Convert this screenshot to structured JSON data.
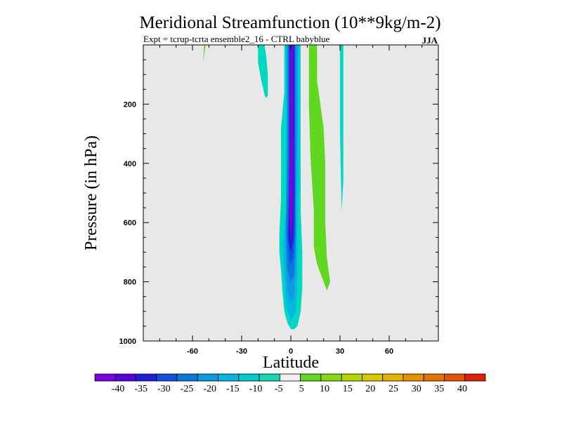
{
  "chart_data": {
    "type": "heatmap",
    "title": "Meridional Streamfunction (10**9kg/m-2)",
    "subtitle": "Expt = tcrup-tcrta  ensemble2_16 - CTRL babyblue",
    "season": "JJA",
    "xlabel": "Latitude",
    "ylabel": "Pressure (in hPa)",
    "xlim": [
      -90,
      90
    ],
    "ylim": [
      1000,
      0
    ],
    "x_ticks": [
      -60,
      -30,
      0,
      30,
      60
    ],
    "x_tick_labels": [
      "-60",
      "-30",
      "0",
      "30",
      "60"
    ],
    "y_ticks": [
      200,
      400,
      600,
      800,
      1000
    ],
    "y_tick_labels": [
      "200",
      "400",
      "600",
      "800",
      "1000"
    ],
    "background_color": "#e8e8e8",
    "colorbar": {
      "labels": [
        "-40",
        "-35",
        "-30",
        "-25",
        "-20",
        "-15",
        "-10",
        "-5",
        "5",
        "10",
        "15",
        "20",
        "25",
        "30",
        "35",
        "40"
      ],
      "colors": [
        "#7b00e0",
        "#5a00d8",
        "#2020d8",
        "#1050e0",
        "#0a78e0",
        "#0a9be0",
        "#00b8e0",
        "#00ccd0",
        "#10d8b0",
        "#f0f0f0",
        "#60d820",
        "#88d810",
        "#b0d800",
        "#d8c800",
        "#e8b000",
        "#e89000",
        "#e87000",
        "#e85000",
        "#e02000"
      ]
    },
    "regions": [
      {
        "name": "negative-cell-outer",
        "value_level": "-10",
        "color": "#00d8c0",
        "points": [
          [
            -4,
            0
          ],
          [
            -4,
            80
          ],
          [
            -4,
            160
          ],
          [
            -6,
            280
          ],
          [
            -6,
            400
          ],
          [
            -6,
            520
          ],
          [
            -7,
            640
          ],
          [
            -7,
            700
          ],
          [
            -6,
            760
          ],
          [
            -5,
            840
          ],
          [
            -4,
            900
          ],
          [
            -2,
            940
          ],
          [
            0,
            960
          ],
          [
            2,
            960
          ],
          [
            4,
            950
          ],
          [
            6,
            900
          ],
          [
            7,
            820
          ],
          [
            7,
            700
          ],
          [
            6,
            560
          ],
          [
            6,
            400
          ],
          [
            6,
            240
          ],
          [
            6,
            80
          ],
          [
            6,
            0
          ]
        ]
      },
      {
        "name": "negative-cell-band1",
        "value_level": "-15",
        "color": "#00b8e0",
        "points": [
          [
            -3,
            0
          ],
          [
            -3,
            300
          ],
          [
            -3,
            560
          ],
          [
            -5,
            680
          ],
          [
            -4,
            800
          ],
          [
            -3,
            880
          ],
          [
            0,
            930
          ],
          [
            3,
            900
          ],
          [
            4,
            800
          ],
          [
            4,
            640
          ],
          [
            5,
            400
          ],
          [
            5,
            120
          ],
          [
            5,
            0
          ]
        ]
      },
      {
        "name": "negative-cell-band2",
        "value_level": "-20",
        "color": "#0a9be0",
        "points": [
          [
            -2,
            0
          ],
          [
            -2,
            300
          ],
          [
            -3,
            620
          ],
          [
            -3,
            760
          ],
          [
            -2,
            830
          ],
          [
            0,
            870
          ],
          [
            2,
            850
          ],
          [
            3,
            740
          ],
          [
            3,
            560
          ],
          [
            4,
            300
          ],
          [
            4,
            0
          ]
        ]
      },
      {
        "name": "negative-cell-band3",
        "value_level": "-25",
        "color": "#0a78e0",
        "points": [
          [
            -2,
            0
          ],
          [
            -2,
            400
          ],
          [
            -3,
            640
          ],
          [
            -2,
            760
          ],
          [
            0,
            800
          ],
          [
            2,
            780
          ],
          [
            3,
            680
          ],
          [
            3,
            400
          ],
          [
            3,
            0
          ]
        ]
      },
      {
        "name": "negative-cell-band4",
        "value_level": "-30",
        "color": "#1050e0",
        "points": [
          [
            -1,
            0
          ],
          [
            -1,
            400
          ],
          [
            -2,
            640
          ],
          [
            -1,
            720
          ],
          [
            0,
            740
          ],
          [
            1.5,
            720
          ],
          [
            2.5,
            620
          ],
          [
            2.5,
            300
          ],
          [
            2.5,
            0
          ]
        ]
      },
      {
        "name": "negative-cell-band5",
        "value_level": "-35",
        "color": "#2020d8",
        "points": [
          [
            -1,
            0
          ],
          [
            -1,
            500
          ],
          [
            -1.5,
            660
          ],
          [
            0,
            700
          ],
          [
            1.5,
            660
          ],
          [
            2,
            500
          ],
          [
            2,
            0
          ]
        ]
      },
      {
        "name": "negative-cell-core",
        "value_level": "-40",
        "color": "#7b00e0",
        "points": [
          [
            -0.5,
            0
          ],
          [
            -0.5,
            300
          ],
          [
            -1,
            560
          ],
          [
            0,
            660
          ],
          [
            1,
            600
          ],
          [
            1.5,
            400
          ],
          [
            1.5,
            0
          ]
        ]
      },
      {
        "name": "negative-upper-lobe",
        "value_level": "-10",
        "color": "#00d8c0",
        "points": [
          [
            -20,
            0
          ],
          [
            -20,
            60
          ],
          [
            -18,
            120
          ],
          [
            -16,
            170
          ],
          [
            -15,
            180
          ],
          [
            -14,
            170
          ],
          [
            -14,
            100
          ],
          [
            -15,
            40
          ],
          [
            -16,
            0
          ]
        ]
      },
      {
        "name": "negative-thin-lobe",
        "value_level": "-10",
        "color": "#00d8c0",
        "points": [
          [
            30,
            0
          ],
          [
            30,
            200
          ],
          [
            30,
            300
          ],
          [
            31,
            560
          ],
          [
            32,
            460
          ],
          [
            32,
            300
          ],
          [
            32,
            100
          ],
          [
            32,
            0
          ]
        ]
      },
      {
        "name": "positive-cell",
        "value_level": "5",
        "color": "#60d820",
        "points": [
          [
            11,
            0
          ],
          [
            11,
            200
          ],
          [
            12,
            380
          ],
          [
            14,
            560
          ],
          [
            14,
            680
          ],
          [
            16,
            740
          ],
          [
            20,
            800
          ],
          [
            22,
            830
          ],
          [
            24,
            800
          ],
          [
            22,
            720
          ],
          [
            21,
            600
          ],
          [
            21,
            400
          ],
          [
            20,
            280
          ],
          [
            18,
            200
          ],
          [
            16,
            120
          ],
          [
            16,
            40
          ],
          [
            16,
            0
          ]
        ]
      },
      {
        "name": "positive-small-sliver",
        "value_level": "5",
        "color": "#60d820",
        "points": [
          [
            -53,
            0
          ],
          [
            -53,
            10
          ],
          [
            -53.5,
            60
          ],
          [
            -53,
            40
          ],
          [
            -52,
            0
          ]
        ]
      }
    ]
  }
}
